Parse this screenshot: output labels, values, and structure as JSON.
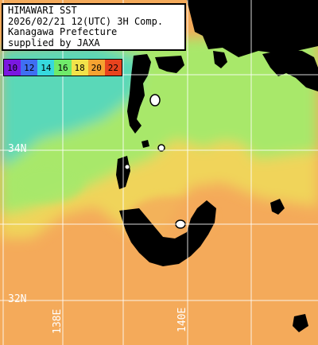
{
  "header": {
    "line1": "HIMAWARI SST",
    "line2": "2026/02/21 12(UTC) 3H Comp.",
    "line3": "Kanagawa Prefecture",
    "line4": "supplied by JAXA"
  },
  "legend": [
    {
      "label": "10",
      "color": "#7a18e0"
    },
    {
      "label": "12",
      "color": "#3f6ff2"
    },
    {
      "label": "14",
      "color": "#36d8de"
    },
    {
      "label": "16",
      "color": "#6fea6a"
    },
    {
      "label": "18",
      "color": "#f2e24a"
    },
    {
      "label": "20",
      "color": "#f5a331"
    },
    {
      "label": "22",
      "color": "#e8431e"
    }
  ],
  "grid": {
    "lat_labels": [
      "34N",
      "32N"
    ],
    "lon_labels": [
      "138E",
      "140E"
    ]
  },
  "colors": {
    "land": "#000000",
    "cloud_mask": "#ffffff",
    "grid_line": "#ffffff",
    "sst_warm": "#f4aa5a",
    "sst_mid": "#f0d45a",
    "sst_cool": "#a8e86a",
    "sst_cold": "#5ad8b8"
  }
}
